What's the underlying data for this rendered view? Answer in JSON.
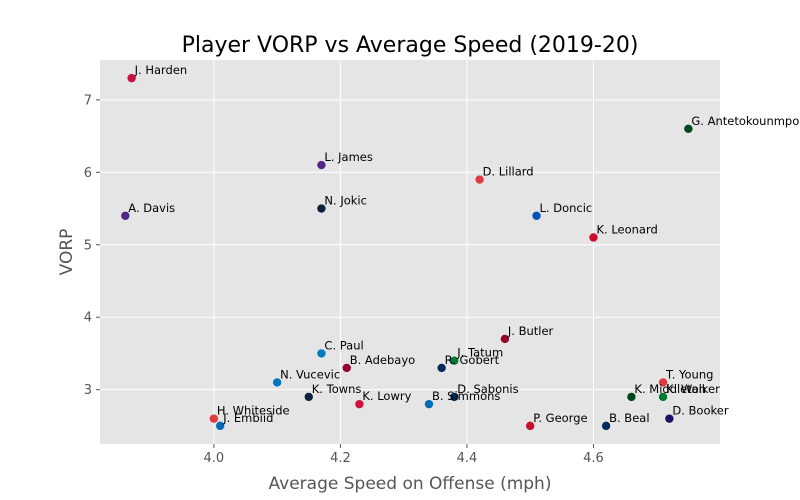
{
  "chart_data": {
    "type": "scatter",
    "title": "Player VORP vs Average Speed (2019-20)",
    "xlabel": "Average Speed on Offense (mph)",
    "ylabel": "VORP",
    "xlim": [
      3.82,
      4.8
    ],
    "ylim": [
      2.25,
      7.55
    ],
    "xticks": [
      4.0,
      4.2,
      4.4,
      4.6
    ],
    "yticks": [
      3,
      4,
      5,
      6,
      7
    ],
    "x_tick_labels": [
      "4.0",
      "4.2",
      "4.4",
      "4.6"
    ],
    "y_tick_labels": [
      "3",
      "4",
      "5",
      "6",
      "7"
    ],
    "grid": true,
    "background": "#e5e5e5",
    "points": [
      {
        "name": "J. Harden",
        "x": 3.87,
        "y": 7.3,
        "color": "#ce1141"
      },
      {
        "name": "G. Antetokounmpo",
        "x": 4.75,
        "y": 6.6,
        "color": "#00471b"
      },
      {
        "name": "L. James",
        "x": 4.17,
        "y": 6.1,
        "color": "#552583"
      },
      {
        "name": "D. Lillard",
        "x": 4.42,
        "y": 5.9,
        "color": "#e03a3e"
      },
      {
        "name": "A. Davis",
        "x": 3.86,
        "y": 5.4,
        "color": "#552583"
      },
      {
        "name": "N. Jokic",
        "x": 4.17,
        "y": 5.5,
        "color": "#0e2240"
      },
      {
        "name": "L. Doncic",
        "x": 4.51,
        "y": 5.4,
        "color": "#0053bc"
      },
      {
        "name": "K. Leonard",
        "x": 4.6,
        "y": 5.1,
        "color": "#c8102e"
      },
      {
        "name": "J. Butler",
        "x": 4.46,
        "y": 3.7,
        "color": "#98002e"
      },
      {
        "name": "C. Paul",
        "x": 4.17,
        "y": 3.5,
        "color": "#007ac1"
      },
      {
        "name": "J. Tatum",
        "x": 4.38,
        "y": 3.4,
        "color": "#007a33"
      },
      {
        "name": "B. Adebayo",
        "x": 4.21,
        "y": 3.3,
        "color": "#98002e"
      },
      {
        "name": "R. Gobert",
        "x": 4.36,
        "y": 3.3,
        "color": "#002b5c"
      },
      {
        "name": "N. Vucevic",
        "x": 4.1,
        "y": 3.1,
        "color": "#0077c0"
      },
      {
        "name": "T. Young",
        "x": 4.71,
        "y": 3.1,
        "color": "#e03a3e"
      },
      {
        "name": "K. Towns",
        "x": 4.15,
        "y": 2.9,
        "color": "#0c2340"
      },
      {
        "name": "D. Sabonis",
        "x": 4.38,
        "y": 2.9,
        "color": "#002d62"
      },
      {
        "name": "K. Middleton",
        "x": 4.66,
        "y": 2.9,
        "color": "#00471b"
      },
      {
        "name": "K. Walker",
        "x": 4.71,
        "y": 2.9,
        "color": "#007a33"
      },
      {
        "name": "K. Lowry",
        "x": 4.23,
        "y": 2.8,
        "color": "#ce1141"
      },
      {
        "name": "B. Simmons",
        "x": 4.34,
        "y": 2.8,
        "color": "#006bb6"
      },
      {
        "name": "H. Whiteside",
        "x": 4.0,
        "y": 2.6,
        "color": "#e03a3e"
      },
      {
        "name": "D. Booker",
        "x": 4.72,
        "y": 2.6,
        "color": "#1d1160"
      },
      {
        "name": "J. Embiid",
        "x": 4.01,
        "y": 2.5,
        "color": "#006bb6"
      },
      {
        "name": "P. George",
        "x": 4.5,
        "y": 2.5,
        "color": "#c8102e"
      },
      {
        "name": "B. Beal",
        "x": 4.62,
        "y": 2.5,
        "color": "#002b5c"
      }
    ]
  }
}
